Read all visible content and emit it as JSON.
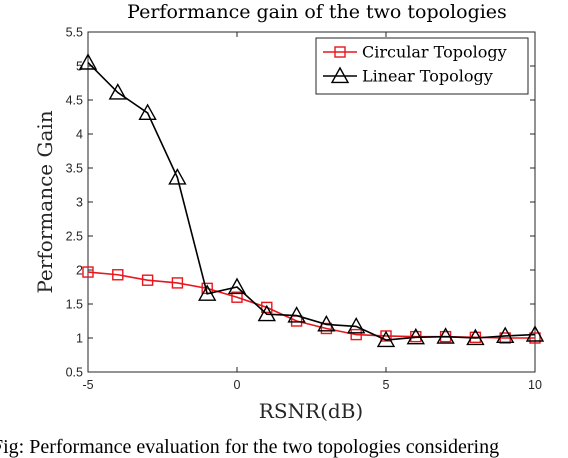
{
  "chart_data": {
    "type": "line",
    "title": "Performance gain of the two topologies",
    "xlabel": "RSNR(dB)",
    "ylabel": "Performance Gain",
    "xlim": [
      -5,
      10
    ],
    "ylim": [
      0.5,
      5.5
    ],
    "xticks": [
      -5,
      0,
      5,
      10
    ],
    "yticks": [
      0.5,
      1,
      1.5,
      2,
      2.5,
      3,
      3.5,
      4,
      4.5,
      5,
      5.5
    ],
    "grid": false,
    "legend_position": "top-right",
    "x": [
      -5,
      -4,
      -3,
      -2,
      -1,
      0,
      1,
      2,
      3,
      4,
      5,
      6,
      7,
      8,
      9,
      10
    ],
    "series": [
      {
        "name": "Circular Topology",
        "color": "#e8161d",
        "marker": "square",
        "values": [
          1.97,
          1.93,
          1.85,
          1.81,
          1.73,
          1.6,
          1.45,
          1.25,
          1.14,
          1.05,
          1.03,
          1.02,
          1.02,
          1.01,
          1.0,
          1.0
        ]
      },
      {
        "name": "Linear Topology",
        "color": "#000000",
        "marker": "triangle",
        "values": [
          5.05,
          4.61,
          4.31,
          3.36,
          1.65,
          1.75,
          1.35,
          1.33,
          1.2,
          1.17,
          0.97,
          1.01,
          1.02,
          1.0,
          1.03,
          1.05
        ]
      }
    ]
  },
  "caption": "Fig: Performance evaluation for the two topologies considering"
}
